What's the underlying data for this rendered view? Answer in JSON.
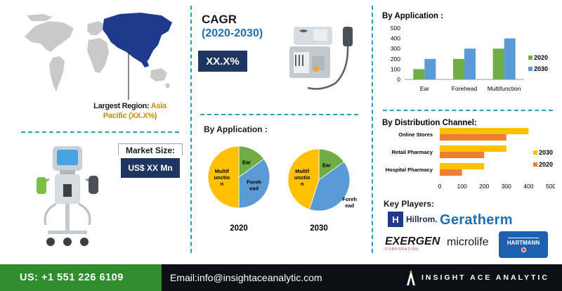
{
  "region": {
    "label": "Largest Region:",
    "value": "Asia",
    "value2": "Pacific (XX.X%)"
  },
  "cagr": {
    "title": "CAGR",
    "period": "(2020-2030)",
    "value": "XX.X%"
  },
  "market_size": {
    "label": "Market Size:",
    "value": "US$ XX Mn"
  },
  "pie_section": {
    "title": "By Application :"
  },
  "footer": {
    "phone": "US:  +1 551 226 6109",
    "email": "Email:info@insightaceanalytic.com",
    "brand": "INSIGHT ACE ANALYTIC"
  },
  "key_players": {
    "title": "Key Players:",
    "logos": [
      "Hillrom.",
      "Geratherm",
      "EXERGEN",
      "CORPORATION",
      "microlife",
      "HARTMANN"
    ]
  },
  "colors": {
    "c2020": "#70ad47",
    "c2030": "#5b9bd5",
    "orange": "#ed7d31",
    "yellow": "#ffc000",
    "navy": "#1e3561",
    "teal": "#2a9fb8"
  },
  "chart_data": [
    {
      "type": "bar",
      "title": "By Application :",
      "categories": [
        "Ear",
        "Forehead",
        "Multifunction"
      ],
      "series": [
        {
          "name": "2020",
          "values": [
            100,
            200,
            300
          ],
          "color": "#70ad47"
        },
        {
          "name": "2030",
          "values": [
            200,
            300,
            400
          ],
          "color": "#5b9bd5"
        }
      ],
      "ylim": [
        0,
        500
      ],
      "yticks": [
        "0",
        "100",
        "200",
        "300",
        "400",
        "500"
      ],
      "legend": "right"
    },
    {
      "type": "bar",
      "orientation": "horizontal",
      "title": "By Distribution Channel:",
      "categories": [
        "Online Stores",
        "Retail Pharmacy",
        "Hospital Pharmacy"
      ],
      "series": [
        {
          "name": "2030",
          "values": [
            400,
            300,
            200
          ],
          "color": "#ffc000"
        },
        {
          "name": "2020",
          "values": [
            300,
            200,
            100
          ],
          "color": "#ed7d31"
        }
      ],
      "xlim": [
        0,
        500
      ],
      "xticks": [
        "0",
        "100",
        "200",
        "300",
        "400",
        "500"
      ],
      "legend": "right"
    },
    {
      "type": "pie",
      "label": "2020",
      "slices": [
        {
          "name": "Ear",
          "value": 15,
          "color": "#70ad47",
          "label": "Ear"
        },
        {
          "name": "Forehead",
          "value": 35,
          "color": "#5b9bd5",
          "label_lines": [
            "Foreh",
            "ead"
          ]
        },
        {
          "name": "Multifunction",
          "value": 50,
          "color": "#ffc000",
          "label_lines": [
            "Multif",
            "unctio",
            "n"
          ]
        }
      ]
    },
    {
      "type": "pie",
      "label": "2030",
      "slices": [
        {
          "name": "Ear",
          "value": 15,
          "color": "#70ad47",
          "label": "Ear"
        },
        {
          "name": "Forehead",
          "value": 40,
          "color": "#5b9bd5",
          "label_lines": [
            "Foreh",
            "ead"
          ]
        },
        {
          "name": "Multifunction",
          "value": 45,
          "color": "#ffc000",
          "label_lines": [
            "Multif",
            "unctio",
            "n"
          ]
        }
      ]
    }
  ]
}
